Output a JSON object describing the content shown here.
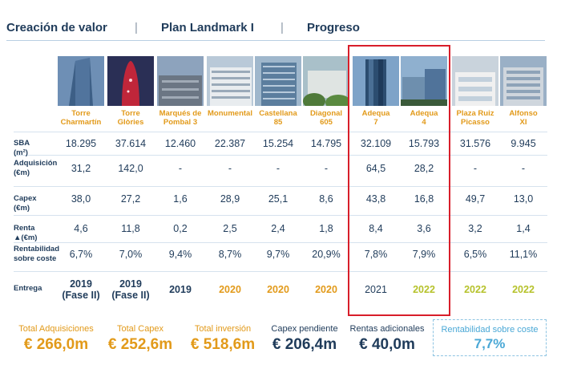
{
  "header": {
    "titles": [
      "Creación de valor",
      "Plan Landmark I",
      "Progreso"
    ],
    "separator": "|"
  },
  "buildings": [
    {
      "name": "Torre\nCharmartín",
      "icon": "tower-glass-photo"
    },
    {
      "name": "Torre\nGlòries",
      "icon": "tower-red-photo"
    },
    {
      "name": "Marqués de\nPombal 3",
      "icon": "city-block-photo"
    },
    {
      "name": "Monumental",
      "icon": "office-facade-photo"
    },
    {
      "name": "Castellana\n85",
      "icon": "office-tower-photo"
    },
    {
      "name": "Diagonal\n605",
      "icon": "office-trees-photo"
    },
    {
      "name": "Adequa\n7",
      "icon": "glass-tower-photo"
    },
    {
      "name": "Adequa\n4",
      "icon": "glass-campus-photo"
    },
    {
      "name": "Plaza Ruiz\nPicasso",
      "icon": "office-white-photo"
    },
    {
      "name": "Alfonso\nXI",
      "icon": "office-classic-photo"
    }
  ],
  "rows": [
    {
      "label": "SBA (m²)",
      "values": [
        "18.295",
        "37.614",
        "12.460",
        "22.387",
        "15.254",
        "14.795",
        "32.109",
        "15.793",
        "31.576",
        "9.945"
      ]
    },
    {
      "label": "Adquisición\n(€m)",
      "values": [
        "31,2",
        "142,0",
        "-",
        "-",
        "-",
        "-",
        "64,5",
        "28,2",
        "-",
        "-"
      ]
    },
    {
      "label": "Capex (€m)",
      "values": [
        "38,0",
        "27,2",
        "1,6",
        "28,9",
        "25,1",
        "8,6",
        "43,8",
        "16,8",
        "49,7",
        "13,0"
      ]
    },
    {
      "label": "Renta ▲(€m)",
      "values": [
        "4,6",
        "11,8",
        "0,2",
        "2,5",
        "2,4",
        "1,8",
        "8,4",
        "3,6",
        "3,2",
        "1,4"
      ]
    },
    {
      "label": "Rentabilidad\nsobre coste",
      "values": [
        "6,7%",
        "7,0%",
        "9,4%",
        "8,7%",
        "9,7%",
        "20,9%",
        "7,8%",
        "7,9%",
        "6,5%",
        "11,1%"
      ]
    }
  ],
  "delivery": {
    "label": "Entrega",
    "values": [
      "2019\n(Fase II)",
      "2019\n(Fase II)",
      "2019",
      "2020",
      "2020",
      "2020",
      "2021",
      "2022",
      "2022",
      "2022"
    ],
    "colors": [
      "dark-bold",
      "dark-bold",
      "dark-bold",
      "orange",
      "orange",
      "orange",
      "dark",
      "green",
      "green",
      "green"
    ]
  },
  "summary": [
    {
      "label": "Total Adquisiciones",
      "value": "€ 266,0m",
      "style": "orange"
    },
    {
      "label": "Total Capex",
      "value": "€ 252,6m",
      "style": "orange"
    },
    {
      "label": "Total inversión",
      "value": "€ 518,6m",
      "style": "orange"
    },
    {
      "label": "Capex pendiente",
      "value": "€ 206,4m",
      "style": "blue"
    },
    {
      "label": "Rentas adicionales",
      "value": "€ 40,0m",
      "style": "blue"
    }
  ],
  "highlight": {
    "label": "Rentabilidad sobre coste",
    "value": "7,7%"
  },
  "colors": {
    "navy": "#1f3b5a",
    "orange": "#e29a1a",
    "green": "#b6c22b",
    "sky": "#4aa8d6",
    "red": "#d81e2a"
  }
}
